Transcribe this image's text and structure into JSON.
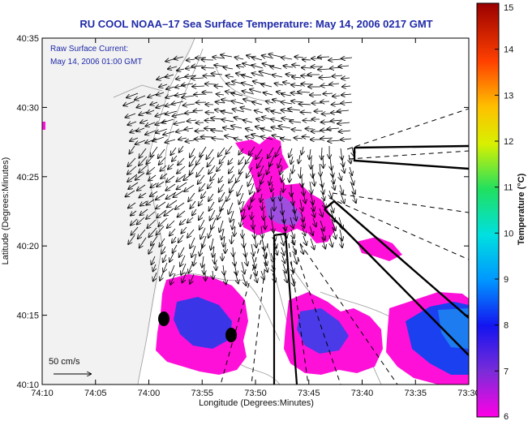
{
  "chart_data": {
    "type": "map",
    "title": "RU COOL  NOAA–17  Sea Surface Temperature:  May 14, 2006 0217 GMT",
    "xlabel": "Longitude (Degrees:Minutes)",
    "ylabel": "Latitude (Degrees:Minutes)",
    "x_ticks": [
      "74:10",
      "74:05",
      "74:00",
      "73:55",
      "73:50",
      "73:45",
      "73:40",
      "73:35",
      "73:30"
    ],
    "y_ticks": [
      "40:10",
      "40:15",
      "40:20",
      "40:25",
      "40:30",
      "40:35"
    ],
    "annotation_lines": [
      "Raw Surface Current:",
      "May 14, 2006 01:00 GMT"
    ],
    "scale_arrow_label": "50 cm/s",
    "colorbar": {
      "label": "Temperature (°C)",
      "range": [
        6,
        15
      ],
      "ticks": [
        "6",
        "7",
        "8",
        "9",
        "10",
        "11",
        "12",
        "13",
        "14",
        "15"
      ]
    },
    "grid": false
  }
}
